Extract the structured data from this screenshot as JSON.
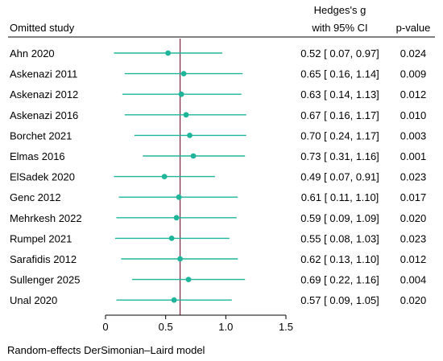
{
  "chart_data": {
    "type": "forest",
    "headers": {
      "study": "Omitted study",
      "estimate_line1": "Hedges's g",
      "estimate_line2": "with 95% CI",
      "pvalue": "p-value"
    },
    "studies": [
      {
        "name": "Ahn 2020",
        "g": 0.52,
        "ci": [
          0.07,
          0.97
        ],
        "ci_text": "0.52 [ 0.07,  0.97]",
        "p": "0.024"
      },
      {
        "name": "Askenazi 2011",
        "g": 0.65,
        "ci": [
          0.16,
          1.14
        ],
        "ci_text": "0.65 [ 0.16,  1.14]",
        "p": "0.009"
      },
      {
        "name": "Askenazi 2012",
        "g": 0.63,
        "ci": [
          0.14,
          1.13
        ],
        "ci_text": "0.63 [ 0.14,  1.13]",
        "p": "0.012"
      },
      {
        "name": "Askenazi 2016",
        "g": 0.67,
        "ci": [
          0.16,
          1.17
        ],
        "ci_text": "0.67 [ 0.16,  1.17]",
        "p": "0.010"
      },
      {
        "name": "Borchet 2021",
        "g": 0.7,
        "ci": [
          0.24,
          1.17
        ],
        "ci_text": "0.70 [ 0.24,  1.17]",
        "p": "0.003"
      },
      {
        "name": "Elmas 2016",
        "g": 0.73,
        "ci": [
          0.31,
          1.16
        ],
        "ci_text": "0.73 [ 0.31,  1.16]",
        "p": "0.001"
      },
      {
        "name": "ElSadek 2020",
        "g": 0.49,
        "ci": [
          0.07,
          0.91
        ],
        "ci_text": "0.49 [ 0.07,  0.91]",
        "p": "0.023"
      },
      {
        "name": "Genc 2012",
        "g": 0.61,
        "ci": [
          0.11,
          1.1
        ],
        "ci_text": "0.61 [ 0.11,  1.10]",
        "p": "0.017"
      },
      {
        "name": "Mehrkesh 2022",
        "g": 0.59,
        "ci": [
          0.09,
          1.09
        ],
        "ci_text": "0.59 [ 0.09,  1.09]",
        "p": "0.020"
      },
      {
        "name": "Rumpel 2021",
        "g": 0.55,
        "ci": [
          0.08,
          1.03
        ],
        "ci_text": "0.55 [ 0.08,  1.03]",
        "p": "0.023"
      },
      {
        "name": "Sarafidis 2012",
        "g": 0.62,
        "ci": [
          0.13,
          1.1
        ],
        "ci_text": "0.62 [ 0.13,  1.10]",
        "p": "0.012"
      },
      {
        "name": "Sullenger 2025",
        "g": 0.69,
        "ci": [
          0.22,
          1.16
        ],
        "ci_text": "0.69 [ 0.22,  1.16]",
        "p": "0.004"
      },
      {
        "name": "Unal 2020",
        "g": 0.57,
        "ci": [
          0.09,
          1.05
        ],
        "ci_text": "0.57 [ 0.09,  1.05]",
        "p": "0.020"
      }
    ],
    "reference_line": 0.62,
    "x_ticks": [
      0,
      0.5,
      1.0,
      1.5
    ],
    "x_tick_labels": [
      "0",
      "0.5",
      "1.0",
      "1.5"
    ],
    "xlim": [
      0,
      1.5
    ],
    "footnote": "Random-effects DerSimonian–Laird model",
    "colors": {
      "ci": "#1fb59a",
      "point": "#1fb59a",
      "reference": "#7a2440",
      "axis": "#000000"
    }
  }
}
